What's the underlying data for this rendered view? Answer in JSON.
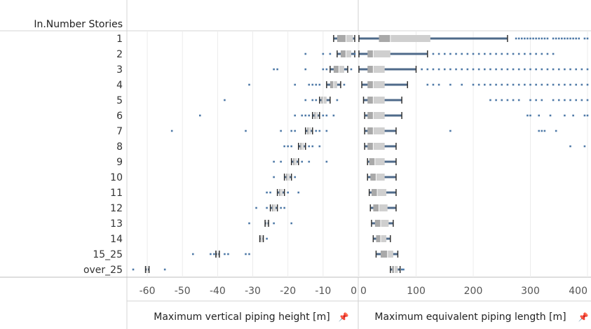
{
  "header": {
    "row_field": "In.Number Stories"
  },
  "chart_data": [
    {
      "type": "boxplot",
      "xlabel": "Maximum vertical piping height [m]",
      "xlim": [
        -65,
        0
      ],
      "xticks": [
        -60,
        -50,
        -40,
        -30,
        -20,
        -10,
        0
      ],
      "categories": [
        "1",
        "2",
        "3",
        "4",
        "5",
        "6",
        "7",
        "8",
        "9",
        "10",
        "11",
        "12",
        "13",
        "14",
        "15_25",
        "over_25"
      ],
      "stats": [
        {
          "whisker_low": -7,
          "q1": -6,
          "median": -3.5,
          "q3": -1.5,
          "whisker_high": -1,
          "outliers": []
        },
        {
          "whisker_low": -6,
          "q1": -5,
          "median": -3.5,
          "q3": -2,
          "whisker_high": -1,
          "outliers": [
            -15,
            -10,
            -8,
            -1
          ]
        },
        {
          "whisker_low": -8,
          "q1": -7,
          "median": -5.5,
          "q3": -4,
          "whisker_high": -3,
          "outliers": [
            -24,
            -23,
            -15,
            -10,
            -9,
            -2
          ]
        },
        {
          "whisker_low": -9,
          "q1": -8,
          "median": -7,
          "q3": -6,
          "whisker_high": -5,
          "outliers": [
            -31,
            -18,
            -14,
            -13,
            -12,
            -11,
            -4
          ]
        },
        {
          "whisker_low": -11,
          "q1": -10.5,
          "median": -10,
          "q3": -9,
          "whisker_high": -8,
          "outliers": [
            -38,
            -15,
            -13,
            -12,
            -6
          ]
        },
        {
          "whisker_low": -13,
          "q1": -12.5,
          "median": -12,
          "q3": -11.5,
          "whisker_high": -11,
          "outliers": [
            -45,
            -18,
            -16,
            -15,
            -14,
            -10,
            -9,
            -7
          ]
        },
        {
          "whisker_low": -15,
          "q1": -14.5,
          "median": -14,
          "q3": -13.5,
          "whisker_high": -13,
          "outliers": [
            -53,
            -32,
            -22,
            -19,
            -18,
            -12,
            -11,
            -9
          ]
        },
        {
          "whisker_low": -17,
          "q1": -16.5,
          "median": -16,
          "q3": -15.5,
          "whisker_high": -15,
          "outliers": [
            -21,
            -20,
            -19,
            -14,
            -13,
            -11
          ]
        },
        {
          "whisker_low": -19,
          "q1": -18.5,
          "median": -18,
          "q3": -17.5,
          "whisker_high": -17,
          "outliers": [
            -24,
            -22,
            -16,
            -14,
            -9
          ]
        },
        {
          "whisker_low": -21,
          "q1": -20.5,
          "median": -20,
          "q3": -19.5,
          "whisker_high": -19,
          "outliers": [
            -24,
            -18
          ]
        },
        {
          "whisker_low": -23,
          "q1": -22.5,
          "median": -22,
          "q3": -21.5,
          "whisker_high": -21,
          "outliers": [
            -26,
            -25,
            -20,
            -17
          ]
        },
        {
          "whisker_low": -25,
          "q1": -24.5,
          "median": -24,
          "q3": -23.5,
          "whisker_high": -23,
          "outliers": [
            -29,
            -26,
            -22,
            -21
          ]
        },
        {
          "whisker_low": -26.5,
          "q1": -26.2,
          "median": -26,
          "q3": -25.8,
          "whisker_high": -25.5,
          "outliers": [
            -31,
            -24,
            -19
          ]
        },
        {
          "whisker_low": -28,
          "q1": -27.8,
          "median": -27.5,
          "q3": -27.2,
          "whisker_high": -27,
          "outliers": [
            -26
          ]
        },
        {
          "whisker_low": -40.5,
          "q1": -40.2,
          "median": -40,
          "q3": -39.8,
          "whisker_high": -39.5,
          "outliers": [
            -47,
            -42,
            -41,
            -38,
            -37,
            -32,
            -31
          ]
        },
        {
          "whisker_low": -60.5,
          "q1": -60.2,
          "median": -60,
          "q3": -59.8,
          "whisker_high": -59.5,
          "outliers": [
            -64,
            -55
          ]
        }
      ]
    },
    {
      "type": "boxplot",
      "xlabel": "Maximum equivalent piping length [m]",
      "xlim": [
        0,
        400
      ],
      "xticks": [
        0,
        100,
        200,
        300,
        400
      ],
      "categories": [
        "1",
        "2",
        "3",
        "4",
        "5",
        "6",
        "7",
        "8",
        "9",
        "10",
        "11",
        "12",
        "13",
        "14",
        "15_25",
        "over_25"
      ],
      "stats": [
        {
          "whisker_low": 0,
          "q1": 35,
          "median": 55,
          "q3": 125,
          "whisker_high": 260,
          "outliers": [
            275,
            280,
            285,
            290,
            295,
            300,
            305,
            310,
            315,
            320,
            325,
            330,
            340,
            345,
            350,
            355,
            360,
            365,
            370,
            375,
            380,
            385,
            395,
            400
          ]
        },
        {
          "whisker_low": 0,
          "q1": 15,
          "median": 25,
          "q3": 55,
          "whisker_high": 120,
          "outliers": [
            130,
            140,
            150,
            160,
            170,
            180,
            190,
            200,
            210,
            220,
            230,
            240,
            250,
            260,
            270,
            280,
            290,
            300,
            310,
            320,
            330,
            340
          ]
        },
        {
          "whisker_low": 0,
          "q1": 15,
          "median": 25,
          "q3": 45,
          "whisker_high": 100,
          "outliers": [
            110,
            120,
            130,
            140,
            150,
            160,
            170,
            180,
            190,
            200,
            210,
            220,
            230,
            240,
            250,
            260,
            270,
            280,
            290,
            300,
            310,
            320,
            330,
            340,
            350,
            360,
            370,
            380,
            390,
            400
          ]
        },
        {
          "whisker_low": 5,
          "q1": 15,
          "median": 25,
          "q3": 45,
          "whisker_high": 85,
          "outliers": [
            120,
            130,
            140,
            160,
            180,
            200,
            210,
            220,
            230,
            240,
            250,
            260,
            270,
            280,
            290,
            300,
            310,
            320,
            330,
            340,
            350,
            360,
            370,
            380,
            390,
            400
          ]
        },
        {
          "whisker_low": 8,
          "q1": 15,
          "median": 25,
          "q3": 45,
          "whisker_high": 75,
          "outliers": [
            230,
            240,
            250,
            260,
            270,
            280,
            300,
            310,
            320,
            340,
            350,
            360,
            370,
            380,
            390,
            400
          ]
        },
        {
          "whisker_low": 10,
          "q1": 15,
          "median": 25,
          "q3": 45,
          "whisker_high": 75,
          "outliers": [
            295,
            300,
            315,
            335,
            360,
            375,
            395,
            400
          ]
        },
        {
          "whisker_low": 10,
          "q1": 15,
          "median": 25,
          "q3": 45,
          "whisker_high": 65,
          "outliers": [
            160,
            315,
            320,
            325,
            345
          ]
        },
        {
          "whisker_low": 10,
          "q1": 15,
          "median": 25,
          "q3": 45,
          "whisker_high": 65,
          "outliers": [
            370,
            395
          ]
        },
        {
          "whisker_low": 15,
          "q1": 18,
          "median": 28,
          "q3": 45,
          "whisker_high": 65,
          "outliers": []
        },
        {
          "whisker_low": 15,
          "q1": 20,
          "median": 30,
          "q3": 45,
          "whisker_high": 65,
          "outliers": []
        },
        {
          "whisker_low": 18,
          "q1": 22,
          "median": 32,
          "q3": 48,
          "whisker_high": 65,
          "outliers": []
        },
        {
          "whisker_low": 20,
          "q1": 25,
          "median": 35,
          "q3": 50,
          "whisker_high": 65,
          "outliers": []
        },
        {
          "whisker_low": 22,
          "q1": 28,
          "median": 38,
          "q3": 52,
          "whisker_high": 60,
          "outliers": []
        },
        {
          "whisker_low": 25,
          "q1": 30,
          "median": 38,
          "q3": 48,
          "whisker_high": 55,
          "outliers": []
        },
        {
          "whisker_low": 30,
          "q1": 38,
          "median": 50,
          "q3": 60,
          "whisker_high": 68,
          "outliers": []
        },
        {
          "whisker_low": 55,
          "q1": 58,
          "median": 62,
          "q3": 68,
          "whisker_high": 72,
          "outliers": [
            75,
            78
          ]
        }
      ]
    }
  ]
}
